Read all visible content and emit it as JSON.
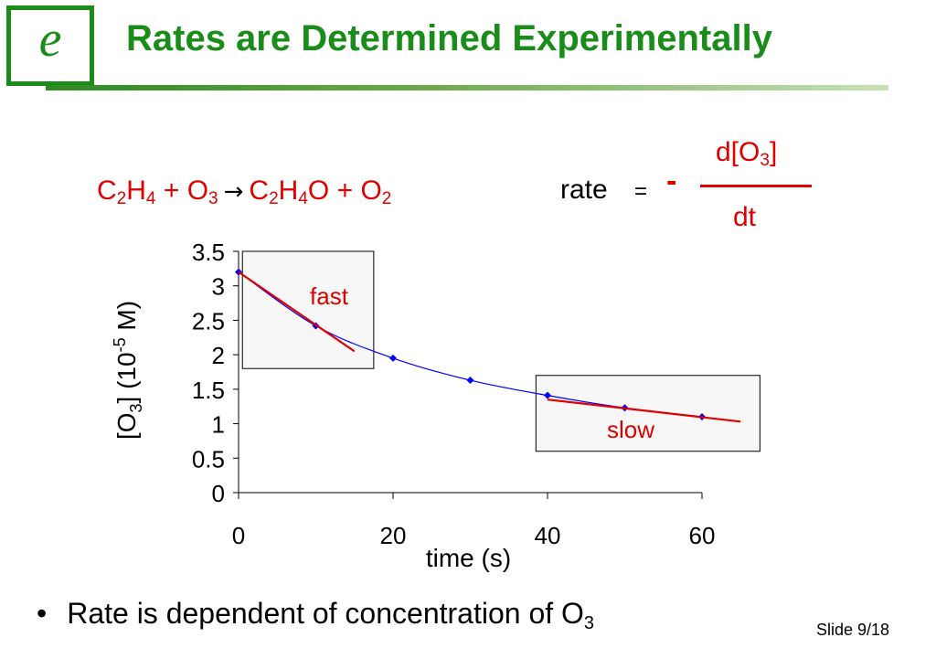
{
  "logo": {
    "letter": "e",
    "icon": "letter-e-logo-icon"
  },
  "title": "Rates are Determined Experimentally",
  "equation": {
    "reactant1": {
      "c": "C",
      "c_sub": "2",
      "h": "H",
      "h_sub": "4"
    },
    "plus1": " + O",
    "o3_sub": "3",
    "arrow": "→",
    "product1": {
      "c": "C",
      "c_sub": "2",
      "h": "H",
      "h_sub": "4",
      "o": "O"
    },
    "plus2": " + O",
    "o2_sub": "2"
  },
  "rate": {
    "word": "rate",
    "equals": "=",
    "minus": "-",
    "numerator": "d[O",
    "numerator_sub": "3",
    "numerator_close": "]",
    "denominator": "dt"
  },
  "chart_data": {
    "type": "scatter",
    "xlabel": "time (s)",
    "ylabel": "[O3] (10-5 M)",
    "ylabel_parts": {
      "a": "[O",
      "a_sub": "3",
      "b": "] (10",
      "b_sup": "-5",
      "c": " M)"
    },
    "xlim": [
      0,
      60
    ],
    "ylim": [
      0,
      3.5
    ],
    "x_ticks": [
      0,
      20,
      40,
      60
    ],
    "x_tick_labels": [
      "0",
      "20",
      "40",
      "60"
    ],
    "y_ticks": [
      0,
      0.5,
      1,
      1.5,
      2,
      2.5,
      3,
      3.5
    ],
    "y_tick_labels": [
      "0",
      "0.5",
      "1",
      "1.5",
      "2",
      "2.5",
      "3",
      "3.5"
    ],
    "grid": false,
    "series": [
      {
        "x": [
          0,
          10,
          20,
          30,
          40,
          50,
          60
        ],
        "y": [
          3.2,
          2.42,
          1.95,
          1.63,
          1.41,
          1.23,
          1.1
        ],
        "color": "#0000ff"
      }
    ],
    "tangents": [
      {
        "label": "fast",
        "x1": 0,
        "y1": 3.2,
        "x2": 15,
        "y2": 2.05,
        "color": "#e00000",
        "box_x": [
          0.5,
          17.5
        ],
        "box_y": [
          1.8,
          3.5
        ]
      },
      {
        "label": "slow",
        "x1": 40,
        "y1": 1.35,
        "x2": 65,
        "y2": 1.03,
        "color": "#e00000",
        "box_x": [
          38.5,
          67.5
        ],
        "box_y": [
          0.6,
          1.7
        ]
      }
    ]
  },
  "bullet": {
    "text": "Rate is dependent of concentration of O",
    "sub": "3"
  },
  "slide_number": "Slide 9/18"
}
